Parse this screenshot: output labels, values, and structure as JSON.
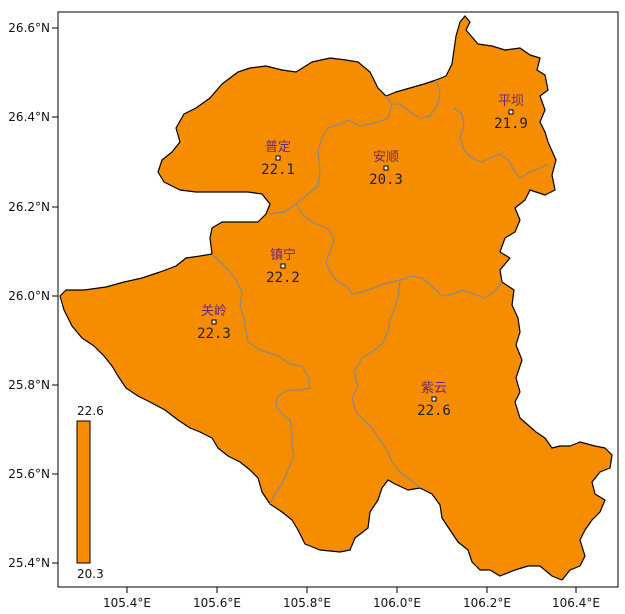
{
  "map": {
    "fill_color": "#F68C00",
    "border_color": "#000000",
    "inner_border_color": "#8a8a8a",
    "lat_ticks": [
      "26.6°N",
      "26.4°N",
      "26.2°N",
      "26.0°N",
      "25.8°N",
      "25.6°N",
      "25.4°N"
    ],
    "lon_ticks": [
      "105.4°E",
      "105.6°E",
      "105.8°E",
      "106.0°E",
      "106.2°E",
      "106.4°E"
    ],
    "stations": [
      {
        "name": "平坝",
        "value": "21.9"
      },
      {
        "name": "普定",
        "value": "22.1"
      },
      {
        "name": "安顺",
        "value": "20.3"
      },
      {
        "name": "镇宁",
        "value": "22.2"
      },
      {
        "name": "关岭",
        "value": "22.3"
      },
      {
        "name": "紫云",
        "value": "22.6"
      }
    ]
  },
  "legend": {
    "max": "22.6",
    "min": "20.3",
    "color": "#F68C00"
  }
}
